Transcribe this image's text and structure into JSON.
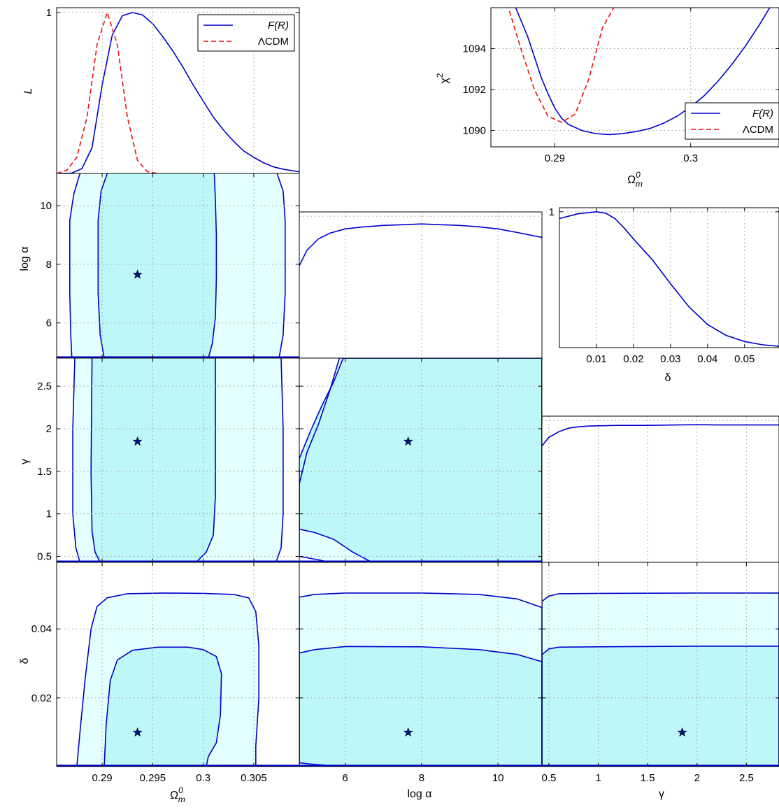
{
  "figure": {
    "series_names": [
      "F(R)",
      "ΛCDM"
    ],
    "colors": {
      "frline": "#0000cc",
      "lcdm": "#ee1111",
      "fill_outer": "#e3ffff",
      "fill_inner": "#bef7f7",
      "star": "#00118a",
      "grid": "#9a9a9a"
    },
    "labels": {
      "om": "Ω",
      "om_sup": "0",
      "om_sub": "m",
      "loga": "log α",
      "gamma": "γ",
      "delta": "δ",
      "L": "L",
      "chi": "χ",
      "chi_sup": "2"
    }
  },
  "chart_data": [
    {
      "id": "L_om",
      "type": "line",
      "xlabel": "",
      "ylabel": "L",
      "xlim": [
        0.2855,
        0.3095
      ],
      "ylim": [
        0,
        1.03
      ],
      "xticks": [],
      "yticks": [
        1
      ],
      "legend": "top-right",
      "series": [
        {
          "name": "F(R)",
          "style": "solid",
          "x": [
            0.2855,
            0.287,
            0.288,
            0.289,
            0.29,
            0.291,
            0.292,
            0.293,
            0.294,
            0.295,
            0.296,
            0.297,
            0.298,
            0.299,
            0.3,
            0.301,
            0.302,
            0.303,
            0.304,
            0.305,
            0.306,
            0.307,
            0.308,
            0.309,
            0.3095
          ],
          "y": [
            0,
            0.002,
            0.03,
            0.16,
            0.55,
            0.86,
            0.98,
            1.0,
            0.985,
            0.93,
            0.85,
            0.76,
            0.66,
            0.55,
            0.45,
            0.35,
            0.27,
            0.2,
            0.14,
            0.1,
            0.065,
            0.04,
            0.025,
            0.015,
            0.01
          ]
        },
        {
          "name": "ΛCDM",
          "style": "dashed",
          "x": [
            0.2855,
            0.2865,
            0.2875,
            0.2885,
            0.2895,
            0.2905,
            0.2915,
            0.2925,
            0.2935,
            0.2945,
            0.2955
          ],
          "y": [
            0,
            0.02,
            0.1,
            0.35,
            0.8,
            1.0,
            0.8,
            0.35,
            0.08,
            0.01,
            0
          ]
        }
      ]
    },
    {
      "id": "chi2",
      "type": "line",
      "xlabel": "Ω^0_m",
      "ylabel": "χ²",
      "xlim": [
        0.2853,
        0.3065
      ],
      "ylim": [
        1089.2,
        1096.0
      ],
      "xticks": [
        0.29,
        0.3
      ],
      "yticks": [
        1090,
        1092,
        1094
      ],
      "legend": "bottom-right",
      "series": [
        {
          "name": "F(R)",
          "style": "solid",
          "x": [
            0.287,
            0.288,
            0.2885,
            0.289,
            0.2895,
            0.29,
            0.2905,
            0.291,
            0.292,
            0.293,
            0.294,
            0.295,
            0.296,
            0.297,
            0.298,
            0.299,
            0.3,
            0.301,
            0.302,
            0.303,
            0.304,
            0.305,
            0.306
          ],
          "y": [
            1096.2,
            1094.6,
            1093.6,
            1092.6,
            1091.8,
            1091.1,
            1090.6,
            1090.3,
            1090.0,
            1089.85,
            1089.8,
            1089.85,
            1089.95,
            1090.1,
            1090.35,
            1090.7,
            1091.15,
            1091.7,
            1092.4,
            1093.2,
            1094.1,
            1095.1,
            1096.2
          ]
        },
        {
          "name": "ΛCDM",
          "style": "dashed",
          "x": [
            0.2865,
            0.2875,
            0.2885,
            0.2895,
            0.2905,
            0.2915,
            0.2925,
            0.2935,
            0.2945
          ],
          "y": [
            1096.2,
            1094.0,
            1092.0,
            1090.7,
            1090.4,
            1090.8,
            1092.5,
            1095.0,
            1096.2
          ]
        }
      ]
    },
    {
      "id": "L_delta",
      "type": "line",
      "xlabel": "δ",
      "ylabel": "",
      "xlim": [
        0,
        0.0593
      ],
      "ylim": [
        0,
        1.03
      ],
      "xticks": [
        0.01,
        0.02,
        0.03,
        0.04,
        0.05
      ],
      "yticks": [
        1
      ],
      "series": [
        {
          "style": "solid",
          "x": [
            0,
            0.005,
            0.01,
            0.0125,
            0.015,
            0.0175,
            0.02,
            0.025,
            0.03,
            0.035,
            0.04,
            0.045,
            0.05,
            0.055,
            0.0593
          ],
          "y": [
            0.95,
            0.985,
            1.0,
            0.99,
            0.95,
            0.88,
            0.8,
            0.65,
            0.47,
            0.3,
            0.17,
            0.09,
            0.045,
            0.02,
            0.01
          ]
        }
      ]
    },
    {
      "id": "L_loga",
      "type": "line",
      "xlabel": "",
      "ylabel": "",
      "xlim": [
        4.8,
        11.15
      ],
      "ylim": [
        0,
        1.03
      ],
      "xticks": [
        6,
        8,
        10
      ],
      "yticks": [],
      "series": [
        {
          "style": "solid",
          "x": [
            4.8,
            5.0,
            5.3,
            5.6,
            6.0,
            6.5,
            7.0,
            7.5,
            8.0,
            8.5,
            9.0,
            9.5,
            10.0,
            10.5,
            11.15
          ],
          "y": [
            0.65,
            0.76,
            0.84,
            0.88,
            0.91,
            0.925,
            0.935,
            0.94,
            0.945,
            0.94,
            0.935,
            0.925,
            0.91,
            0.885,
            0.85
          ]
        }
      ]
    },
    {
      "id": "L_gamma",
      "type": "line",
      "xlabel": "",
      "ylabel": "",
      "xlim": [
        0.43,
        2.83
      ],
      "ylim": [
        0,
        1.03
      ],
      "xticks": [
        0.5,
        1,
        1.5,
        2,
        2.5
      ],
      "yticks": [],
      "series": [
        {
          "style": "solid",
          "x": [
            0.43,
            0.5,
            0.6,
            0.7,
            0.8,
            0.9,
            1.0,
            1.2,
            1.5,
            1.8,
            2.0,
            2.2,
            2.5,
            2.83
          ],
          "y": [
            0.82,
            0.88,
            0.92,
            0.945,
            0.955,
            0.96,
            0.962,
            0.965,
            0.965,
            0.968,
            0.97,
            0.968,
            0.968,
            0.968
          ]
        }
      ]
    },
    {
      "id": "c_om_loga",
      "type": "contour",
      "xlabel": "",
      "ylabel": "log α",
      "xlim": [
        0.2855,
        0.3095
      ],
      "ylim": [
        4.8,
        11.1
      ],
      "xticks": [
        0.29,
        0.295,
        0.3,
        0.305
      ],
      "yticks": [
        6,
        8,
        10
      ],
      "best_fit": [
        0.2935,
        7.65
      ],
      "outer": {
        "left": [
          [
            0.2878,
            11.1
          ],
          [
            0.2872,
            10.4
          ],
          [
            0.2868,
            9.5
          ],
          [
            0.2868,
            7
          ],
          [
            0.2869,
            5.6
          ],
          [
            0.287,
            4.8
          ]
        ],
        "right": [
          [
            0.3075,
            4.8
          ],
          [
            0.3079,
            5.6
          ],
          [
            0.3081,
            7
          ],
          [
            0.3081,
            9.5
          ],
          [
            0.3079,
            10.5
          ],
          [
            0.3073,
            11.1
          ]
        ]
      },
      "inner": {
        "left": [
          [
            0.2905,
            11.1
          ],
          [
            0.2899,
            10.5
          ],
          [
            0.2896,
            9.5
          ],
          [
            0.2896,
            7
          ],
          [
            0.2898,
            5.6
          ],
          [
            0.2902,
            4.8
          ]
        ],
        "right": [
          [
            0.3005,
            4.8
          ],
          [
            0.3009,
            5.3
          ],
          [
            0.3012,
            6.2
          ],
          [
            0.3013,
            7.5
          ],
          [
            0.3013,
            9.0
          ],
          [
            0.3012,
            10.2
          ],
          [
            0.3011,
            11.1
          ]
        ]
      }
    },
    {
      "id": "c_om_gamma",
      "type": "contour",
      "xlabel": "",
      "ylabel": "γ",
      "xlim": [
        0.2855,
        0.3095
      ],
      "ylim": [
        0.43,
        2.83
      ],
      "xticks": [
        0.29,
        0.295,
        0.3,
        0.305
      ],
      "yticks": [
        0.5,
        1,
        1.5,
        2,
        2.5
      ],
      "best_fit": [
        0.2935,
        1.85
      ],
      "outer": {
        "left": [
          [
            0.2873,
            2.83
          ],
          [
            0.2871,
            2.0
          ],
          [
            0.2871,
            1.0
          ],
          [
            0.2874,
            0.6
          ],
          [
            0.2878,
            0.43
          ]
        ],
        "right": [
          [
            0.3072,
            0.43
          ],
          [
            0.3077,
            0.6
          ],
          [
            0.3079,
            1.0
          ],
          [
            0.3079,
            2.0
          ],
          [
            0.3077,
            2.83
          ]
        ]
      },
      "inner": {
        "left": [
          [
            0.289,
            2.83
          ],
          [
            0.2889,
            1.5
          ],
          [
            0.289,
            0.8
          ],
          [
            0.2893,
            0.55
          ],
          [
            0.2898,
            0.43
          ]
        ],
        "right": [
          [
            0.2993,
            0.43
          ],
          [
            0.3003,
            0.55
          ],
          [
            0.301,
            0.75
          ],
          [
            0.3012,
            1.2
          ],
          [
            0.3012,
            2.83
          ]
        ]
      }
    },
    {
      "id": "c_om_delta",
      "type": "contour",
      "xlabel": "Ω^0_m",
      "ylabel": "δ",
      "xlim": [
        0.2855,
        0.3095
      ],
      "ylim": [
        0.0001,
        0.0593
      ],
      "xticks": [
        0.29,
        0.295,
        0.3,
        0.305
      ],
      "yticks": [
        0.02,
        0.04
      ],
      "best_fit": [
        0.2935,
        0.01
      ],
      "outer": [
        [
          0.2875,
          0.0001
        ],
        [
          0.2878,
          0.01
        ],
        [
          0.2883,
          0.025
        ],
        [
          0.2889,
          0.04
        ],
        [
          0.2895,
          0.0465
        ],
        [
          0.2905,
          0.049
        ],
        [
          0.2925,
          0.0502
        ],
        [
          0.296,
          0.0504
        ],
        [
          0.3,
          0.0503
        ],
        [
          0.303,
          0.05
        ],
        [
          0.3045,
          0.049
        ],
        [
          0.3052,
          0.045
        ],
        [
          0.3055,
          0.035
        ],
        [
          0.3055,
          0.02
        ],
        [
          0.3052,
          0.006
        ],
        [
          0.3052,
          0.0001
        ]
      ],
      "inner": [
        [
          0.2902,
          0.0001
        ],
        [
          0.2904,
          0.012
        ],
        [
          0.2908,
          0.025
        ],
        [
          0.2915,
          0.031
        ],
        [
          0.293,
          0.0338
        ],
        [
          0.2955,
          0.0347
        ],
        [
          0.2985,
          0.0347
        ],
        [
          0.3,
          0.034
        ],
        [
          0.3013,
          0.032
        ],
        [
          0.3018,
          0.027
        ],
        [
          0.3017,
          0.015
        ],
        [
          0.3013,
          0.007
        ],
        [
          0.3005,
          0.003
        ],
        [
          0.3003,
          0.0001
        ]
      ]
    },
    {
      "id": "c_loga_gamma",
      "type": "contour",
      "xlabel": "",
      "ylabel": "",
      "xlim": [
        4.8,
        11.15
      ],
      "ylim": [
        0.43,
        2.83
      ],
      "xticks": [
        6,
        8,
        10
      ],
      "yticks": [
        0.5,
        1,
        1.5,
        2,
        2.5
      ],
      "best_fit": [
        7.65,
        1.85
      ],
      "outer": [
        [
          4.8,
          1.35
        ],
        [
          5.0,
          1.72
        ],
        [
          5.3,
          2.05
        ],
        [
          5.6,
          2.45
        ],
        [
          5.85,
          2.83
        ],
        [
          11.15,
          2.83
        ],
        [
          11.15,
          0.43
        ],
        [
          5.6,
          0.43
        ],
        [
          5.3,
          0.46
        ],
        [
          4.8,
          0.5
        ]
      ],
      "inner": [
        [
          4.8,
          1.65
        ],
        [
          5.1,
          1.98
        ],
        [
          5.4,
          2.28
        ],
        [
          5.7,
          2.55
        ],
        [
          5.95,
          2.83
        ],
        [
          11.15,
          2.83
        ],
        [
          11.15,
          0.43
        ],
        [
          6.7,
          0.43
        ],
        [
          6.2,
          0.55
        ],
        [
          5.7,
          0.7
        ],
        [
          5.2,
          0.78
        ],
        [
          4.8,
          0.82
        ]
      ]
    },
    {
      "id": "c_loga_delta",
      "type": "contour",
      "xlabel": "log α",
      "ylabel": "",
      "xlim": [
        4.8,
        11.15
      ],
      "ylim": [
        0.0001,
        0.0593
      ],
      "xticks": [
        6,
        8,
        10
      ],
      "yticks": [
        0.02,
        0.04
      ],
      "best_fit": [
        7.65,
        0.01
      ],
      "outer": [
        [
          4.8,
          0.0001
        ],
        [
          4.8,
          0.0492
        ],
        [
          5.2,
          0.05
        ],
        [
          6.0,
          0.0504
        ],
        [
          8.0,
          0.0504
        ],
        [
          9.5,
          0.05
        ],
        [
          10.5,
          0.0487
        ],
        [
          11.15,
          0.0462
        ],
        [
          11.15,
          0.0001
        ]
      ],
      "inner": [
        [
          4.8,
          0.0012
        ],
        [
          5.2,
          0.0007
        ],
        [
          5.7,
          0.0003
        ],
        [
          6.0,
          0.0001
        ],
        [
          11.15,
          0.0001
        ],
        [
          11.15,
          0.0305
        ],
        [
          10.5,
          0.0326
        ],
        [
          9.5,
          0.034
        ],
        [
          8.0,
          0.0348
        ],
        [
          6.0,
          0.0349
        ],
        [
          5.2,
          0.034
        ],
        [
          4.8,
          0.033
        ]
      ]
    },
    {
      "id": "c_gamma_delta",
      "type": "contour",
      "xlabel": "γ",
      "ylabel": "",
      "xlim": [
        0.43,
        2.83
      ],
      "ylim": [
        0.0001,
        0.0593
      ],
      "xticks": [
        0.5,
        1,
        1.5,
        2,
        2.5
      ],
      "yticks": [
        0.02,
        0.04
      ],
      "best_fit": [
        1.85,
        0.01
      ],
      "outer": [
        [
          0.43,
          0.0001
        ],
        [
          0.43,
          0.048
        ],
        [
          0.5,
          0.0495
        ],
        [
          0.6,
          0.0502
        ],
        [
          1.0,
          0.0503
        ],
        [
          2.0,
          0.0504
        ],
        [
          2.83,
          0.0504
        ],
        [
          2.83,
          0.0001
        ]
      ],
      "inner": [
        [
          0.43,
          0.0001
        ],
        [
          0.43,
          0.0325
        ],
        [
          0.5,
          0.0342
        ],
        [
          0.6,
          0.0347
        ],
        [
          1.0,
          0.0348
        ],
        [
          2.0,
          0.035
        ],
        [
          2.83,
          0.035
        ],
        [
          2.83,
          0.0001
        ]
      ]
    }
  ]
}
